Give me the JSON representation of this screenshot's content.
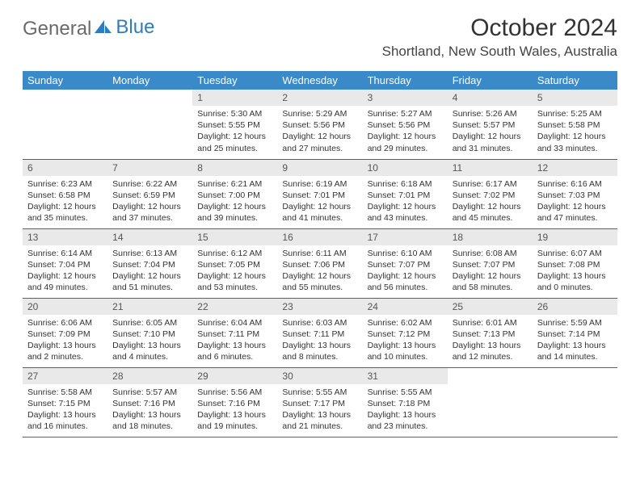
{
  "logo": {
    "text1": "General",
    "text2": "Blue"
  },
  "title": "October 2024",
  "location": "Shortland, New South Wales, Australia",
  "dayHeaders": [
    "Sunday",
    "Monday",
    "Tuesday",
    "Wednesday",
    "Thursday",
    "Friday",
    "Saturday"
  ],
  "colors": {
    "headerBg": "#3a89c9",
    "headerText": "#ffffff",
    "dayNumBg": "#e9e9e9",
    "cellBorder": "#2e6da4",
    "logoGray": "#6a6a6a",
    "logoBlue": "#2e7cc0"
  },
  "weeks": [
    [
      null,
      null,
      {
        "n": "1",
        "sr": "Sunrise: 5:30 AM",
        "ss": "Sunset: 5:55 PM",
        "d1": "Daylight: 12 hours",
        "d2": "and 25 minutes."
      },
      {
        "n": "2",
        "sr": "Sunrise: 5:29 AM",
        "ss": "Sunset: 5:56 PM",
        "d1": "Daylight: 12 hours",
        "d2": "and 27 minutes."
      },
      {
        "n": "3",
        "sr": "Sunrise: 5:27 AM",
        "ss": "Sunset: 5:56 PM",
        "d1": "Daylight: 12 hours",
        "d2": "and 29 minutes."
      },
      {
        "n": "4",
        "sr": "Sunrise: 5:26 AM",
        "ss": "Sunset: 5:57 PM",
        "d1": "Daylight: 12 hours",
        "d2": "and 31 minutes."
      },
      {
        "n": "5",
        "sr": "Sunrise: 5:25 AM",
        "ss": "Sunset: 5:58 PM",
        "d1": "Daylight: 12 hours",
        "d2": "and 33 minutes."
      }
    ],
    [
      {
        "n": "6",
        "sr": "Sunrise: 6:23 AM",
        "ss": "Sunset: 6:58 PM",
        "d1": "Daylight: 12 hours",
        "d2": "and 35 minutes."
      },
      {
        "n": "7",
        "sr": "Sunrise: 6:22 AM",
        "ss": "Sunset: 6:59 PM",
        "d1": "Daylight: 12 hours",
        "d2": "and 37 minutes."
      },
      {
        "n": "8",
        "sr": "Sunrise: 6:21 AM",
        "ss": "Sunset: 7:00 PM",
        "d1": "Daylight: 12 hours",
        "d2": "and 39 minutes."
      },
      {
        "n": "9",
        "sr": "Sunrise: 6:19 AM",
        "ss": "Sunset: 7:01 PM",
        "d1": "Daylight: 12 hours",
        "d2": "and 41 minutes."
      },
      {
        "n": "10",
        "sr": "Sunrise: 6:18 AM",
        "ss": "Sunset: 7:01 PM",
        "d1": "Daylight: 12 hours",
        "d2": "and 43 minutes."
      },
      {
        "n": "11",
        "sr": "Sunrise: 6:17 AM",
        "ss": "Sunset: 7:02 PM",
        "d1": "Daylight: 12 hours",
        "d2": "and 45 minutes."
      },
      {
        "n": "12",
        "sr": "Sunrise: 6:16 AM",
        "ss": "Sunset: 7:03 PM",
        "d1": "Daylight: 12 hours",
        "d2": "and 47 minutes."
      }
    ],
    [
      {
        "n": "13",
        "sr": "Sunrise: 6:14 AM",
        "ss": "Sunset: 7:04 PM",
        "d1": "Daylight: 12 hours",
        "d2": "and 49 minutes."
      },
      {
        "n": "14",
        "sr": "Sunrise: 6:13 AM",
        "ss": "Sunset: 7:04 PM",
        "d1": "Daylight: 12 hours",
        "d2": "and 51 minutes."
      },
      {
        "n": "15",
        "sr": "Sunrise: 6:12 AM",
        "ss": "Sunset: 7:05 PM",
        "d1": "Daylight: 12 hours",
        "d2": "and 53 minutes."
      },
      {
        "n": "16",
        "sr": "Sunrise: 6:11 AM",
        "ss": "Sunset: 7:06 PM",
        "d1": "Daylight: 12 hours",
        "d2": "and 55 minutes."
      },
      {
        "n": "17",
        "sr": "Sunrise: 6:10 AM",
        "ss": "Sunset: 7:07 PM",
        "d1": "Daylight: 12 hours",
        "d2": "and 56 minutes."
      },
      {
        "n": "18",
        "sr": "Sunrise: 6:08 AM",
        "ss": "Sunset: 7:07 PM",
        "d1": "Daylight: 12 hours",
        "d2": "and 58 minutes."
      },
      {
        "n": "19",
        "sr": "Sunrise: 6:07 AM",
        "ss": "Sunset: 7:08 PM",
        "d1": "Daylight: 13 hours",
        "d2": "and 0 minutes."
      }
    ],
    [
      {
        "n": "20",
        "sr": "Sunrise: 6:06 AM",
        "ss": "Sunset: 7:09 PM",
        "d1": "Daylight: 13 hours",
        "d2": "and 2 minutes."
      },
      {
        "n": "21",
        "sr": "Sunrise: 6:05 AM",
        "ss": "Sunset: 7:10 PM",
        "d1": "Daylight: 13 hours",
        "d2": "and 4 minutes."
      },
      {
        "n": "22",
        "sr": "Sunrise: 6:04 AM",
        "ss": "Sunset: 7:11 PM",
        "d1": "Daylight: 13 hours",
        "d2": "and 6 minutes."
      },
      {
        "n": "23",
        "sr": "Sunrise: 6:03 AM",
        "ss": "Sunset: 7:11 PM",
        "d1": "Daylight: 13 hours",
        "d2": "and 8 minutes."
      },
      {
        "n": "24",
        "sr": "Sunrise: 6:02 AM",
        "ss": "Sunset: 7:12 PM",
        "d1": "Daylight: 13 hours",
        "d2": "and 10 minutes."
      },
      {
        "n": "25",
        "sr": "Sunrise: 6:01 AM",
        "ss": "Sunset: 7:13 PM",
        "d1": "Daylight: 13 hours",
        "d2": "and 12 minutes."
      },
      {
        "n": "26",
        "sr": "Sunrise: 5:59 AM",
        "ss": "Sunset: 7:14 PM",
        "d1": "Daylight: 13 hours",
        "d2": "and 14 minutes."
      }
    ],
    [
      {
        "n": "27",
        "sr": "Sunrise: 5:58 AM",
        "ss": "Sunset: 7:15 PM",
        "d1": "Daylight: 13 hours",
        "d2": "and 16 minutes."
      },
      {
        "n": "28",
        "sr": "Sunrise: 5:57 AM",
        "ss": "Sunset: 7:16 PM",
        "d1": "Daylight: 13 hours",
        "d2": "and 18 minutes."
      },
      {
        "n": "29",
        "sr": "Sunrise: 5:56 AM",
        "ss": "Sunset: 7:16 PM",
        "d1": "Daylight: 13 hours",
        "d2": "and 19 minutes."
      },
      {
        "n": "30",
        "sr": "Sunrise: 5:55 AM",
        "ss": "Sunset: 7:17 PM",
        "d1": "Daylight: 13 hours",
        "d2": "and 21 minutes."
      },
      {
        "n": "31",
        "sr": "Sunrise: 5:55 AM",
        "ss": "Sunset: 7:18 PM",
        "d1": "Daylight: 13 hours",
        "d2": "and 23 minutes."
      },
      null,
      null
    ]
  ]
}
